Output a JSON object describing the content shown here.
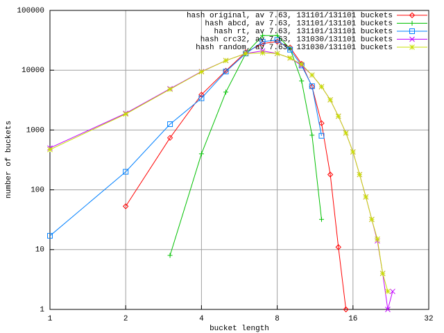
{
  "chart_data": {
    "type": "line",
    "xlabel": "bucket length",
    "ylabel": "number of buckets",
    "xlog": true,
    "ylog": true,
    "grid": true,
    "legend": "top-right",
    "xlim": [
      1,
      32
    ],
    "ylim": [
      1,
      100000
    ],
    "xticks": [
      1,
      2,
      4,
      8,
      16,
      32
    ],
    "yticks": [
      1,
      10,
      100,
      1000,
      10000,
      100000
    ],
    "series": [
      {
        "name": "hash original, av 7.63, 131101/131101 buckets",
        "color": "#ff0000",
        "marker": "diamond",
        "x": [
          2,
          3,
          4,
          5,
          6,
          7,
          8,
          9,
          10,
          11,
          12,
          13,
          14,
          15
        ],
        "values": [
          53,
          740,
          3900,
          9800,
          20000,
          28000,
          30000,
          24000,
          12800,
          5300,
          1300,
          180,
          11,
          1
        ]
      },
      {
        "name": "hash abcd, av 7.63, 131101/131101 buckets",
        "color": "#00c000",
        "marker": "plus",
        "x": [
          3,
          4,
          5,
          6,
          7,
          8,
          9,
          10,
          11,
          12
        ],
        "values": [
          8,
          400,
          4300,
          19000,
          38000,
          38000,
          23000,
          6600,
          820,
          32
        ]
      },
      {
        "name": "hash rt, av 7.63, 131101/131101 buckets",
        "color": "#0080ff",
        "marker": "square",
        "x": [
          1,
          2,
          3,
          4,
          5,
          6,
          7,
          8,
          9,
          10,
          11,
          12
        ],
        "values": [
          17,
          200,
          1250,
          3400,
          9500,
          19000,
          30000,
          32000,
          22000,
          12000,
          5400,
          800
        ]
      },
      {
        "name": "hash crc32, av 7.63, 131030/131101 buckets",
        "color": "#c000ff",
        "marker": "cross",
        "x": [
          1,
          2,
          3,
          4,
          5,
          6,
          7,
          8,
          9,
          10,
          11,
          12,
          13,
          14,
          15,
          16,
          17,
          18,
          19,
          20,
          21,
          22,
          23
        ],
        "values": [
          500,
          1900,
          4900,
          9500,
          14500,
          19000,
          21000,
          19000,
          16000,
          12000,
          8300,
          5300,
          3200,
          1700,
          890,
          430,
          180,
          76,
          32,
          14,
          4,
          1,
          2
        ]
      },
      {
        "name": "hash random, av 7.63, 131030/131101 buckets",
        "color": "#c8e000",
        "marker": "star",
        "x": [
          1,
          2,
          3,
          4,
          5,
          6,
          7,
          8,
          9,
          10,
          11,
          12,
          13,
          14,
          15,
          16,
          17,
          18,
          19,
          20,
          21,
          22
        ],
        "values": [
          470,
          1850,
          4800,
          9400,
          14500,
          19000,
          19500,
          19000,
          16000,
          12500,
          8300,
          5300,
          3200,
          1700,
          890,
          430,
          180,
          76,
          32,
          15,
          4,
          2
        ]
      }
    ]
  }
}
